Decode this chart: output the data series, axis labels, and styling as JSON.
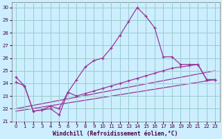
{
  "xlabel": "Windchill (Refroidissement éolien,°C)",
  "background_color": "#cceeff",
  "grid_color": "#99cccc",
  "line_color": "#993399",
  "xlim": [
    -0.5,
    23.5
  ],
  "ylim": [
    21.0,
    30.4
  ],
  "xticks": [
    0,
    1,
    2,
    3,
    4,
    5,
    6,
    7,
    8,
    9,
    10,
    11,
    12,
    13,
    14,
    15,
    16,
    17,
    18,
    19,
    20,
    21,
    22,
    23
  ],
  "yticks": [
    21,
    22,
    23,
    24,
    25,
    26,
    27,
    28,
    29,
    30
  ],
  "line_main_x": [
    0,
    1,
    2,
    3,
    4,
    5,
    6,
    7,
    8,
    9,
    10,
    11,
    12,
    13,
    14,
    15,
    16,
    17,
    18,
    19,
    20,
    21,
    22,
    23
  ],
  "line_main_y": [
    24.5,
    23.8,
    21.8,
    21.9,
    22.0,
    21.5,
    23.3,
    24.3,
    25.3,
    25.8,
    26.0,
    26.8,
    27.8,
    28.9,
    30.0,
    29.3,
    28.4,
    26.1,
    26.1,
    25.5,
    25.5,
    25.5,
    24.3,
    24.3
  ],
  "line2_x": [
    0,
    1,
    2,
    3,
    4,
    5,
    6,
    7,
    8,
    9,
    10,
    11,
    12,
    13,
    14,
    15,
    16,
    17,
    18,
    19,
    20,
    21,
    22,
    23
  ],
  "line2_y": [
    24.1,
    23.8,
    21.8,
    21.9,
    22.2,
    22.0,
    23.3,
    23.0,
    23.2,
    23.4,
    23.6,
    23.8,
    24.0,
    24.2,
    24.4,
    24.6,
    24.8,
    25.0,
    25.2,
    25.3,
    25.4,
    25.5,
    24.3,
    24.3
  ],
  "line3_x": [
    0,
    23
  ],
  "line3_y": [
    21.8,
    24.3
  ],
  "line4_x": [
    0,
    23
  ],
  "line4_y": [
    22.0,
    25.0
  ]
}
